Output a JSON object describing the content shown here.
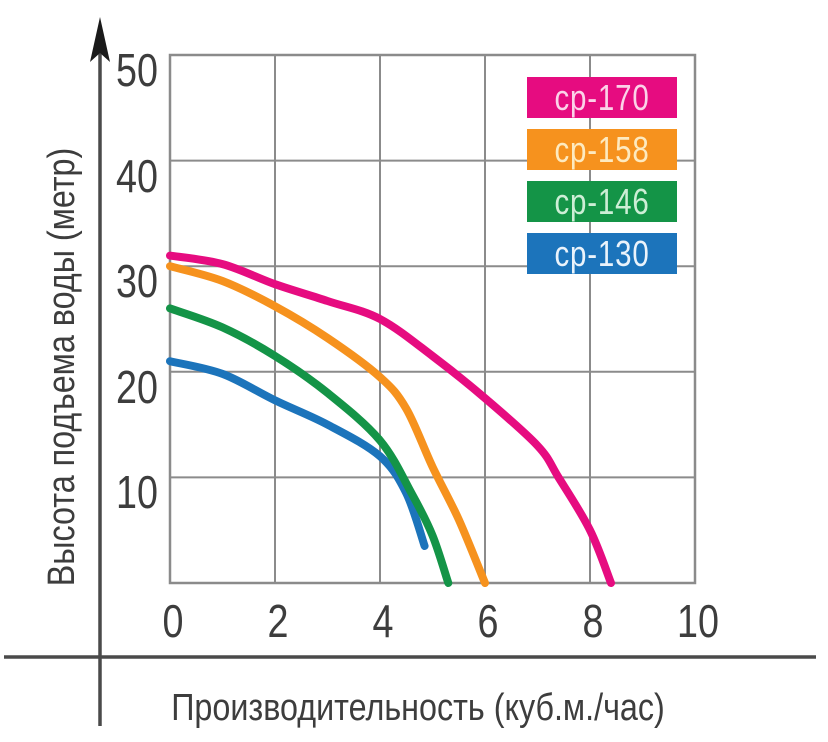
{
  "chart_data": {
    "type": "line",
    "title": "",
    "xlabel": "Производительность (куб.м./час)",
    "ylabel": "Высота подъема воды (метр)",
    "xlim": [
      0,
      10
    ],
    "ylim": [
      0,
      50
    ],
    "xticks": [
      0,
      2,
      4,
      6,
      8,
      10
    ],
    "yticks": [
      10,
      20,
      30,
      40,
      50
    ],
    "grid": true,
    "legend_position": "top-right",
    "series": [
      {
        "name": "ср-130",
        "color": "#1c74bb",
        "label_text_color": "#eaf3fb",
        "points": [
          [
            0,
            21
          ],
          [
            1,
            19.8
          ],
          [
            2,
            17.3
          ],
          [
            3,
            15
          ],
          [
            4,
            12
          ],
          [
            4.5,
            8.5
          ],
          [
            4.85,
            3.5
          ]
        ]
      },
      {
        "name": "ср-146",
        "color": "#149447",
        "label_text_color": "#cdeed6",
        "points": [
          [
            0,
            26
          ],
          [
            1,
            24.2
          ],
          [
            2,
            21.5
          ],
          [
            3,
            18
          ],
          [
            4,
            13.5
          ],
          [
            4.6,
            8.5
          ],
          [
            5,
            4.5
          ],
          [
            5.3,
            0
          ]
        ]
      },
      {
        "name": "ср-158",
        "color": "#f6921e",
        "label_text_color": "#fdeac0",
        "points": [
          [
            0,
            30
          ],
          [
            1,
            28.6
          ],
          [
            2,
            26.2
          ],
          [
            3,
            23.2
          ],
          [
            4,
            19.5
          ],
          [
            4.5,
            16.5
          ],
          [
            5,
            11
          ],
          [
            5.5,
            6
          ],
          [
            6,
            0
          ]
        ]
      },
      {
        "name": "ср-170",
        "color": "#e60c80",
        "label_text_color": "#fbd2e8",
        "points": [
          [
            0,
            31
          ],
          [
            1,
            30.2
          ],
          [
            2,
            28.3
          ],
          [
            3,
            26.7
          ],
          [
            4,
            25
          ],
          [
            5,
            21.5
          ],
          [
            6,
            17.5
          ],
          [
            7,
            13
          ],
          [
            7.4,
            10
          ],
          [
            8,
            5
          ],
          [
            8.4,
            0
          ]
        ]
      }
    ],
    "legend_order": [
      "ср-170",
      "ср-158",
      "ср-146",
      "ср-130"
    ]
  },
  "colors": {
    "grid": "#8b8b8b",
    "axis": "#4a4a4a",
    "arrow": "#1a1a1a",
    "tick_text": "#3d3d3d"
  }
}
